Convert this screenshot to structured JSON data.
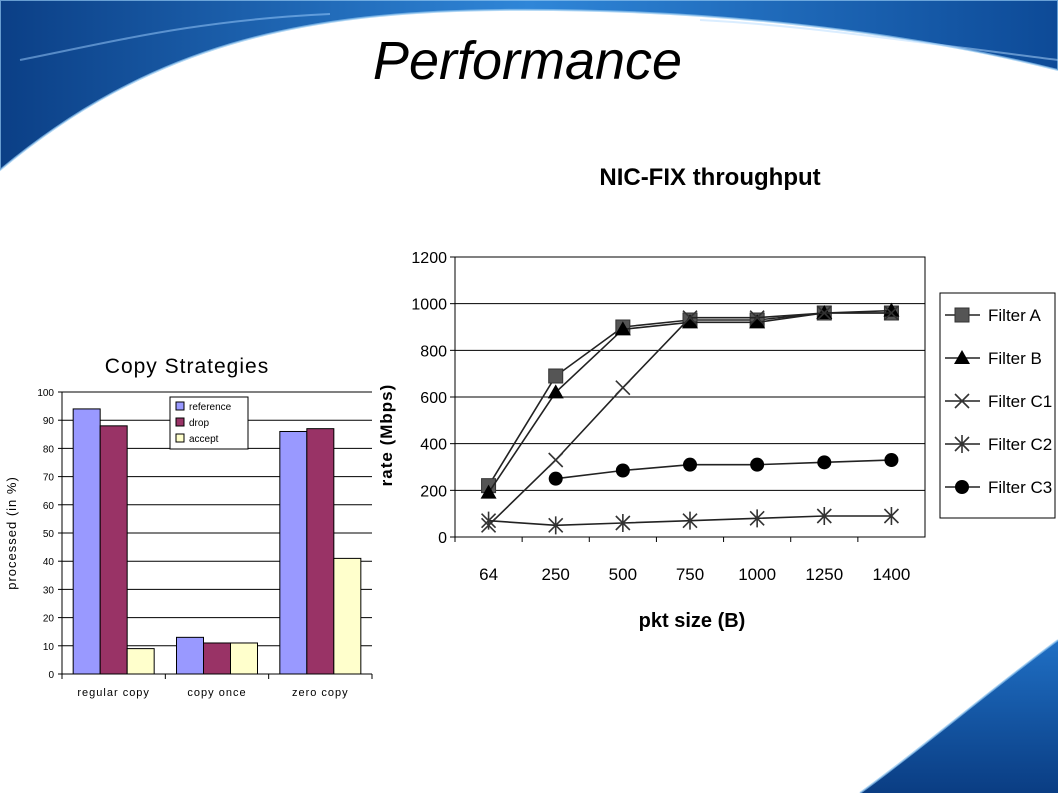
{
  "slide": {
    "title": "Performance"
  },
  "colors": {
    "accent": "#1a6fc9",
    "background": "#ffffff"
  },
  "chart_data": [
    {
      "type": "bar",
      "title": "Copy Strategies",
      "ylabel": "processed (in %)",
      "xlabel": "",
      "categories": [
        "regular copy",
        "copy once",
        "zero copy"
      ],
      "series": [
        {
          "name": "reference",
          "color": "#9999ff",
          "values": [
            94,
            13,
            86
          ]
        },
        {
          "name": "drop",
          "color": "#993366",
          "values": [
            88,
            11,
            87
          ]
        },
        {
          "name": "accept",
          "color": "#ffffcc",
          "values": [
            9,
            11,
            41
          ]
        }
      ],
      "ylim": [
        0,
        100
      ],
      "yticks": [
        "0",
        "10",
        "20",
        "30",
        "40",
        "50",
        "60",
        "70",
        "80",
        "90",
        "100"
      ],
      "grid": true,
      "legend": "top-center"
    },
    {
      "type": "line",
      "title": "NIC-FIX throughput",
      "xlabel": "pkt size (B)",
      "ylabel": "rate (Mbps)",
      "categories": [
        "64",
        "250",
        "500",
        "750",
        "1000",
        "1250",
        "1400"
      ],
      "series": [
        {
          "name": "Filter A",
          "marker": "square",
          "values": [
            220,
            690,
            900,
            930,
            930,
            960,
            960
          ]
        },
        {
          "name": "Filter B",
          "marker": "triangle",
          "values": [
            190,
            620,
            890,
            920,
            920,
            960,
            970
          ]
        },
        {
          "name": "Filter C1",
          "marker": "x",
          "values": [
            50,
            330,
            640,
            940,
            940,
            960,
            960
          ]
        },
        {
          "name": "Filter C2",
          "marker": "star",
          "values": [
            70,
            50,
            60,
            70,
            80,
            90,
            90
          ]
        },
        {
          "name": "Filter C3",
          "marker": "circle",
          "values": [
            null,
            250,
            285,
            310,
            310,
            320,
            330
          ]
        }
      ],
      "ylim": [
        0,
        1200
      ],
      "yticks": [
        "0",
        "200",
        "400",
        "600",
        "800",
        "1000",
        "1200"
      ],
      "grid": true,
      "legend": "right"
    }
  ]
}
